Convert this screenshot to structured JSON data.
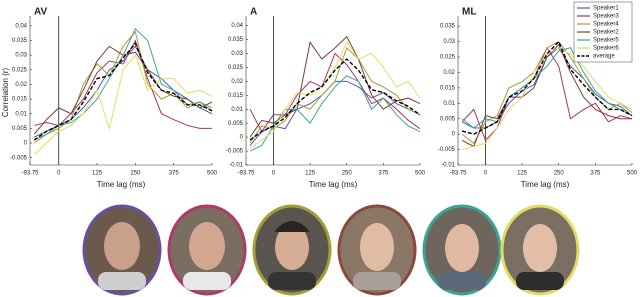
{
  "chart_data": [
    {
      "type": "line",
      "title": "AV",
      "y_label": "Correlation (r)",
      "x_label": "Time lag (ms)",
      "x": [
        -80,
        -40,
        0,
        40,
        80,
        125,
        165,
        210,
        250,
        290,
        335,
        375,
        420,
        460,
        500
      ],
      "xlim": [
        -93.75,
        500
      ],
      "xticks": [
        -93.75,
        0,
        125,
        250,
        375,
        500
      ],
      "ylim": [
        -0.0075,
        0.042
      ],
      "yticks": [
        -0.005,
        0,
        0.005,
        0.01,
        0.015,
        0.02,
        0.025,
        0.03,
        0.035,
        0.04
      ],
      "series": [
        {
          "color": "#4a5cb0",
          "values": [
            0.002,
            0.004,
            0.006,
            0.008,
            0.012,
            0.018,
            0.025,
            0.028,
            0.033,
            0.025,
            0.022,
            0.018,
            0.015,
            0.012,
            0.01
          ]
        },
        {
          "color": "#a8345e",
          "values": [
            0.006,
            0.007,
            0.006,
            0.01,
            0.015,
            0.024,
            0.028,
            0.027,
            0.035,
            0.022,
            0.01,
            0.008,
            0.006,
            0.005,
            0.005
          ]
        },
        {
          "color": "#a59e34",
          "values": [
            0.0,
            0.003,
            0.005,
            0.008,
            0.02,
            0.027,
            0.023,
            0.033,
            0.038,
            0.02,
            0.015,
            0.017,
            0.012,
            0.014,
            0.012
          ]
        },
        {
          "color": "#7d3b30",
          "values": [
            0.003,
            0.008,
            0.012,
            0.01,
            0.018,
            0.028,
            0.033,
            0.03,
            0.031,
            0.025,
            0.018,
            0.016,
            0.015,
            0.012,
            0.014
          ]
        },
        {
          "color": "#3aa597",
          "values": [
            0.001,
            0.003,
            0.006,
            0.007,
            0.01,
            0.015,
            0.022,
            0.03,
            0.039,
            0.035,
            0.02,
            0.018,
            0.013,
            0.014,
            0.011
          ]
        },
        {
          "color": "#e2dc62",
          "values": [
            -0.004,
            0.0,
            0.004,
            0.006,
            0.01,
            0.018,
            0.005,
            0.025,
            0.03,
            0.018,
            0.022,
            0.022,
            0.017,
            0.018,
            0.016
          ]
        },
        {
          "color": "#000000",
          "dash": true,
          "values": [
            0.001,
            0.004,
            0.006,
            0.008,
            0.014,
            0.022,
            0.023,
            0.029,
            0.034,
            0.024,
            0.018,
            0.017,
            0.013,
            0.013,
            0.011
          ]
        }
      ]
    },
    {
      "type": "line",
      "title": "A",
      "x_label": "Time lag (ms)",
      "x": [
        -80,
        -40,
        0,
        40,
        80,
        125,
        165,
        210,
        250,
        290,
        335,
        375,
        420,
        460,
        500
      ],
      "xlim": [
        -93.75,
        500
      ],
      "xticks": [
        -93.75,
        0,
        125,
        250,
        375,
        500
      ],
      "ylim": [
        -0.01,
        0.042
      ],
      "yticks": [
        -0.01,
        -0.005,
        0,
        0.005,
        0.01,
        0.015,
        0.02,
        0.025,
        0.03,
        0.035,
        0.04
      ],
      "series": [
        {
          "color": "#4a5cb0",
          "values": [
            -0.003,
            0.002,
            0.004,
            0.003,
            0.01,
            0.012,
            0.015,
            0.02,
            0.02,
            0.018,
            0.014,
            0.016,
            0.012,
            0.01,
            0.008
          ]
        },
        {
          "color": "#a8345e",
          "values": [
            0.01,
            0.002,
            0.008,
            0.008,
            0.015,
            0.02,
            0.018,
            0.03,
            0.026,
            0.02,
            0.012,
            0.014,
            0.01,
            0.006,
            0.003
          ]
        },
        {
          "color": "#a59e34",
          "values": [
            -0.002,
            0.004,
            0.003,
            0.006,
            0.012,
            0.01,
            0.015,
            0.02,
            0.032,
            0.028,
            0.02,
            0.018,
            0.015,
            0.01,
            0.008
          ]
        },
        {
          "color": "#7d3b30",
          "values": [
            0.0,
            0.006,
            0.005,
            0.008,
            0.01,
            0.034,
            0.028,
            0.032,
            0.036,
            0.028,
            0.015,
            0.01,
            0.013,
            0.014,
            0.012
          ]
        },
        {
          "color": "#3aa597",
          "values": [
            -0.005,
            -0.003,
            0.004,
            0.01,
            0.01,
            0.005,
            0.012,
            0.018,
            0.022,
            0.02,
            0.01,
            0.014,
            0.008,
            0.004,
            0.002
          ]
        },
        {
          "color": "#e2dc62",
          "values": [
            -0.004,
            -0.001,
            0.002,
            0.01,
            0.016,
            0.015,
            0.018,
            0.025,
            0.034,
            0.028,
            0.03,
            0.025,
            0.018,
            0.02,
            0.014
          ]
        },
        {
          "color": "#000000",
          "dash": true,
          "values": [
            -0.001,
            0.002,
            0.004,
            0.007,
            0.012,
            0.016,
            0.018,
            0.024,
            0.028,
            0.024,
            0.017,
            0.016,
            0.013,
            0.011,
            0.008
          ]
        }
      ]
    },
    {
      "type": "line",
      "title": "ML",
      "x_label": "Time lag (ms)",
      "legend": "upper right",
      "x": [
        -80,
        -40,
        0,
        40,
        80,
        125,
        165,
        210,
        250,
        290,
        335,
        375,
        420,
        460,
        500
      ],
      "xlim": [
        -93.75,
        500
      ],
      "xticks": [
        -93.75,
        0,
        125,
        250,
        375,
        500
      ],
      "ylim": [
        -0.01,
        0.037
      ],
      "yticks": [
        -0.01,
        -0.005,
        0,
        0.005,
        0.01,
        0.015,
        0.02,
        0.025,
        0.03,
        0.035
      ],
      "series": [
        {
          "name": "Speaker1",
          "color": "#4a5cb0",
          "values": [
            0.004,
            0.002,
            0.002,
            0.004,
            0.01,
            0.014,
            0.016,
            0.025,
            0.028,
            0.022,
            0.018,
            0.013,
            0.01,
            0.009,
            0.006
          ]
        },
        {
          "name": "Speaker3",
          "color": "#a8345e",
          "values": [
            0.004,
            0.008,
            -0.002,
            0.002,
            0.012,
            0.015,
            0.018,
            0.028,
            0.022,
            0.005,
            0.008,
            0.01,
            0.004,
            0.006,
            0.005
          ]
        },
        {
          "name": "Speaker4",
          "color": "#a59e34",
          "values": [
            0.0,
            -0.003,
            0.004,
            0.006,
            0.015,
            0.017,
            0.02,
            0.028,
            0.03,
            0.025,
            0.018,
            0.012,
            0.008,
            0.01,
            0.007
          ]
        },
        {
          "name": "Speaker2",
          "color": "#7d3b30",
          "values": [
            -0.002,
            -0.004,
            0.006,
            0.005,
            0.012,
            0.012,
            0.015,
            0.025,
            0.029,
            0.02,
            0.012,
            0.008,
            0.006,
            0.005,
            0.005
          ]
        },
        {
          "name": "Speaker5",
          "color": "#3aa597",
          "values": [
            0.005,
            0.002,
            0.005,
            0.004,
            0.012,
            0.015,
            0.018,
            0.022,
            0.027,
            0.028,
            0.02,
            0.014,
            0.01,
            0.008,
            0.006
          ]
        },
        {
          "name": "Speaker6",
          "color": "#e2dc62",
          "values": [
            -0.005,
            -0.004,
            -0.003,
            0.002,
            0.008,
            0.012,
            0.02,
            0.026,
            0.028,
            0.026,
            0.022,
            0.017,
            0.012,
            0.01,
            0.008
          ]
        },
        {
          "name": "average",
          "color": "#000000",
          "dash": true,
          "values": [
            0.001,
            0.0,
            0.002,
            0.004,
            0.012,
            0.014,
            0.018,
            0.026,
            0.03,
            0.021,
            0.016,
            0.012,
            0.008,
            0.008,
            0.006
          ]
        }
      ]
    }
  ]
}
